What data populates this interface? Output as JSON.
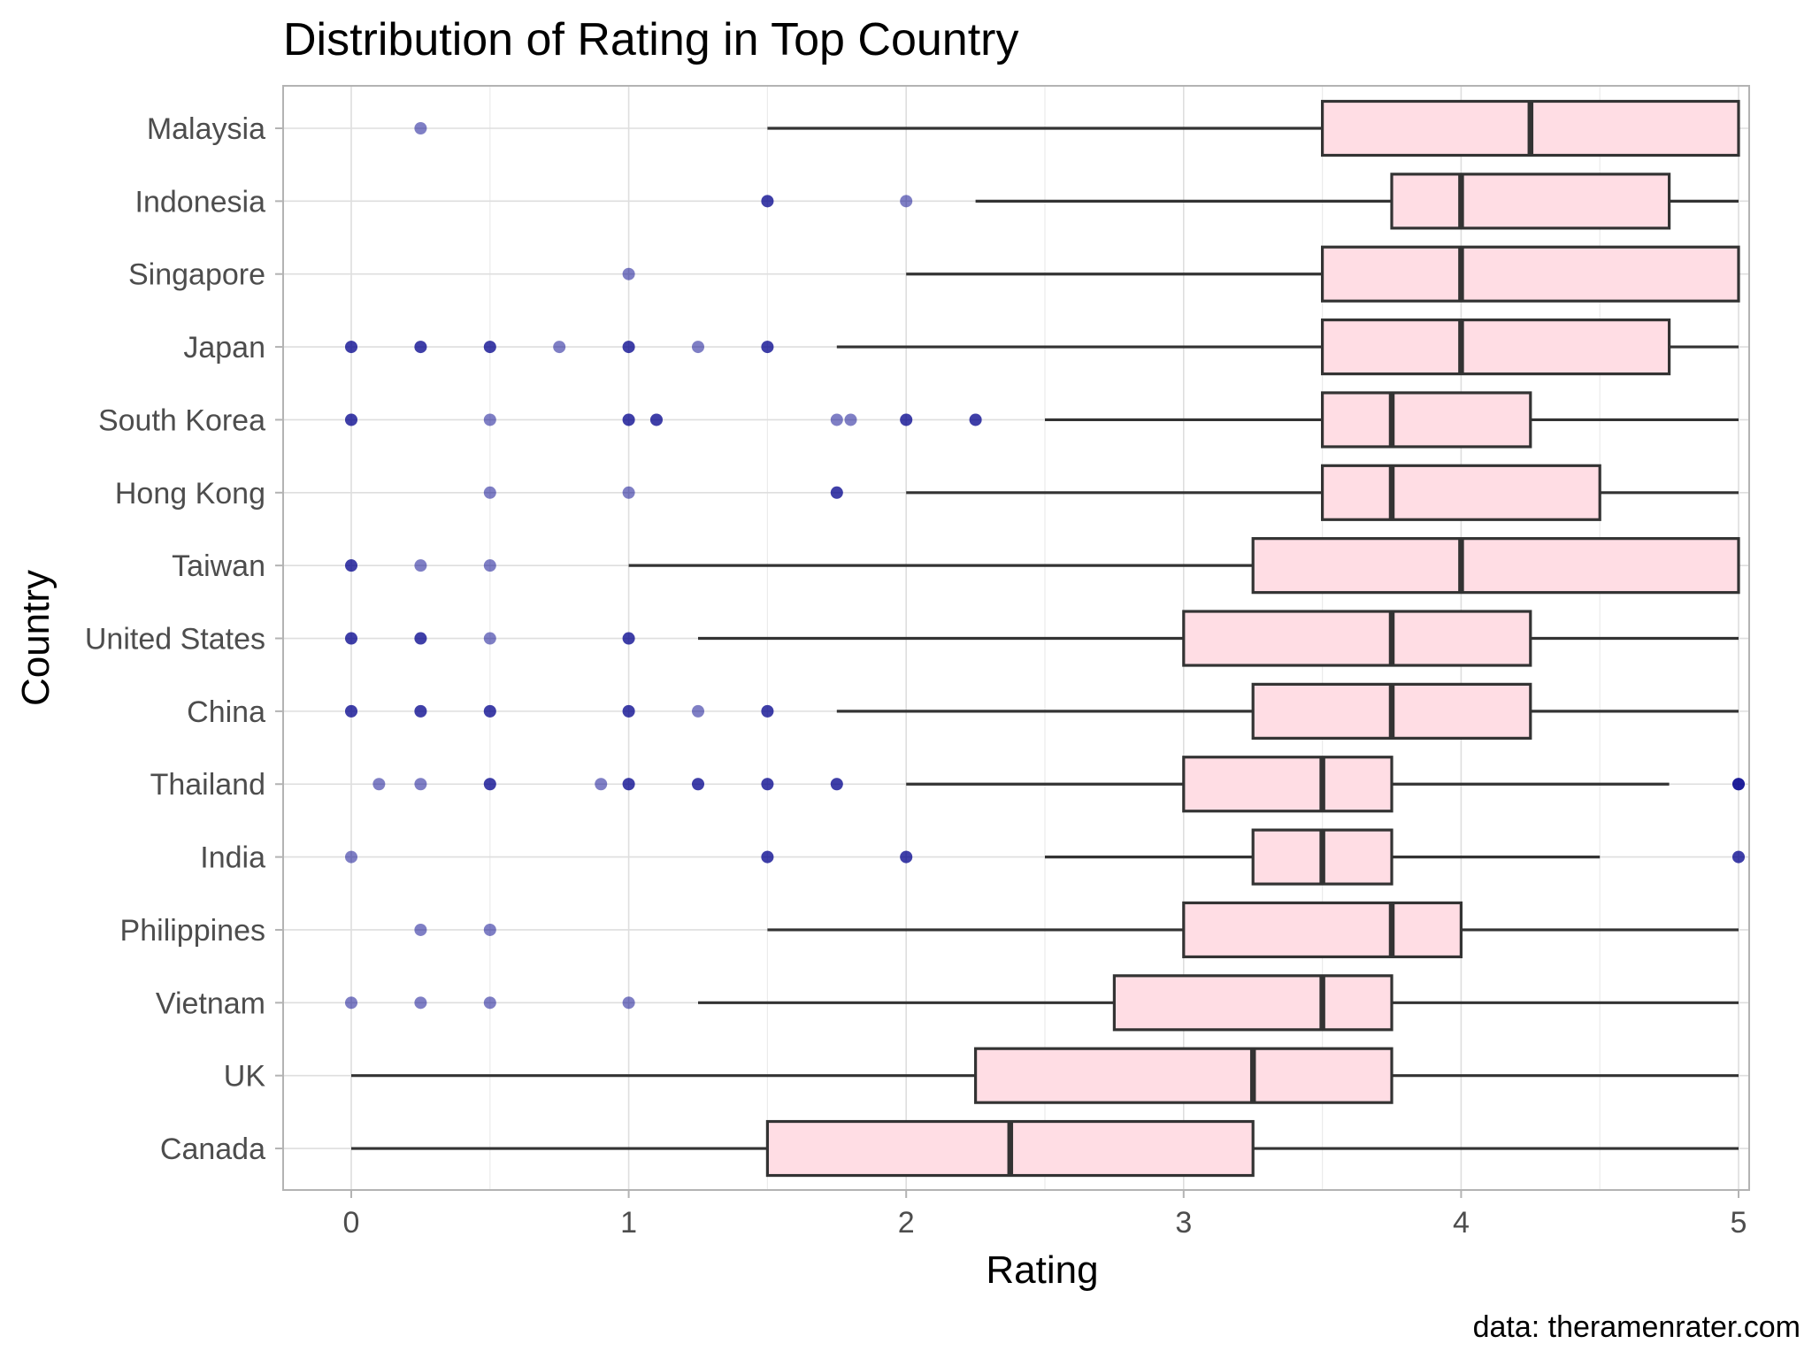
{
  "chart_data": {
    "type": "boxplot",
    "orientation": "horizontal",
    "title": "Distribution of Rating in Top Country",
    "xlabel": "Rating",
    "ylabel": "Country",
    "caption": "data: theramenrater.com",
    "xlim": [
      -0.25,
      5.15
    ],
    "xticks": [
      0,
      1,
      2,
      3,
      4,
      5
    ],
    "grid": true,
    "colors": {
      "box_fill": "#ffdde4",
      "box_stroke": "#333333",
      "outlier": "#00008b",
      "grid": "#dedede",
      "panel_border": "#b3b3b3"
    },
    "categories": [
      "Malaysia",
      "Indonesia",
      "Singapore",
      "Japan",
      "South Korea",
      "Hong Kong",
      "Taiwan",
      "United States",
      "China",
      "Thailand",
      "India",
      "Philippines",
      "Vietnam",
      "UK",
      "Canada"
    ],
    "boxes": [
      {
        "country": "Malaysia",
        "whisker_low": 1.5,
        "q1": 3.5,
        "median": 4.25,
        "q3": 5,
        "whisker_high": 5,
        "outliers": [
          0.25
        ]
      },
      {
        "country": "Indonesia",
        "whisker_low": 2.25,
        "q1": 3.75,
        "median": 4,
        "q3": 4.75,
        "whisker_high": 5,
        "outliers": [
          1.5,
          1.5,
          2
        ]
      },
      {
        "country": "Singapore",
        "whisker_low": 2,
        "q1": 3.5,
        "median": 4,
        "q3": 5,
        "whisker_high": 5,
        "outliers": [
          1
        ]
      },
      {
        "country": "Japan",
        "whisker_low": 1.75,
        "q1": 3.5,
        "median": 4,
        "q3": 4.75,
        "whisker_high": 5,
        "outliers": [
          0,
          0,
          0.25,
          0.25,
          0.5,
          0.5,
          0.75,
          1,
          1,
          1.25,
          1.5,
          1.5
        ]
      },
      {
        "country": "South Korea",
        "whisker_low": 2.5,
        "q1": 3.5,
        "median": 3.75,
        "q3": 4.25,
        "whisker_high": 5,
        "outliers": [
          0,
          0,
          0.5,
          1,
          1,
          1.1,
          1.1,
          1.75,
          1.8,
          2,
          2,
          2.25,
          2.25
        ]
      },
      {
        "country": "Hong Kong",
        "whisker_low": 2,
        "q1": 3.5,
        "median": 3.75,
        "q3": 4.5,
        "whisker_high": 5,
        "outliers": [
          0.5,
          1,
          1.75,
          1.75
        ]
      },
      {
        "country": "Taiwan",
        "whisker_low": 1,
        "q1": 3.25,
        "median": 4,
        "q3": 5,
        "whisker_high": 5,
        "outliers": [
          0,
          0,
          0.25,
          0.5
        ]
      },
      {
        "country": "United States",
        "whisker_low": 1.25,
        "q1": 3,
        "median": 3.75,
        "q3": 4.25,
        "whisker_high": 5,
        "outliers": [
          0,
          0,
          0.25,
          0.25,
          0.5,
          1,
          1
        ]
      },
      {
        "country": "China",
        "whisker_low": 1.75,
        "q1": 3.25,
        "median": 3.75,
        "q3": 4.25,
        "whisker_high": 5,
        "outliers": [
          0,
          0,
          0.25,
          0.25,
          0.5,
          0.5,
          1,
          1,
          1.25,
          1.5,
          1.5
        ]
      },
      {
        "country": "Thailand",
        "whisker_low": 2,
        "q1": 3,
        "median": 3.5,
        "q3": 3.75,
        "whisker_high": 4.75,
        "outliers": [
          0.1,
          0.25,
          0.5,
          0.5,
          0.9,
          1,
          1,
          1.25,
          1.25,
          1.5,
          1.5,
          1.75,
          1.75,
          5,
          5,
          5
        ]
      },
      {
        "country": "India",
        "whisker_low": 2.5,
        "q1": 3.25,
        "median": 3.5,
        "q3": 3.75,
        "whisker_high": 4.5,
        "outliers": [
          0,
          1.5,
          1.5,
          2,
          2,
          5,
          5
        ]
      },
      {
        "country": "Philippines",
        "whisker_low": 1.5,
        "q1": 3,
        "median": 3.75,
        "q3": 4,
        "whisker_high": 5,
        "outliers": [
          0.25,
          0.5
        ]
      },
      {
        "country": "Vietnam",
        "whisker_low": 1.25,
        "q1": 2.75,
        "median": 3.5,
        "q3": 3.75,
        "whisker_high": 5,
        "outliers": [
          0,
          0.25,
          0.5,
          1
        ]
      },
      {
        "country": "UK",
        "whisker_low": 0,
        "q1": 2.25,
        "median": 3.25,
        "q3": 3.75,
        "whisker_high": 5,
        "outliers": []
      },
      {
        "country": "Canada",
        "whisker_low": 0,
        "q1": 1.5,
        "median": 2.375,
        "q3": 3.25,
        "whisker_high": 5,
        "outliers": []
      }
    ]
  }
}
